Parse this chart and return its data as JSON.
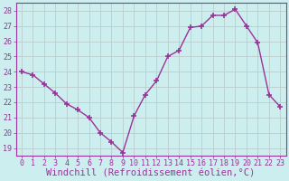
{
  "x": [
    0,
    1,
    2,
    3,
    4,
    5,
    6,
    7,
    8,
    9,
    10,
    11,
    12,
    13,
    14,
    15,
    16,
    17,
    18,
    19,
    20,
    21,
    22,
    23
  ],
  "y": [
    24.0,
    23.8,
    23.2,
    22.6,
    21.9,
    21.5,
    21.0,
    20.0,
    19.4,
    18.7,
    21.1,
    22.5,
    23.4,
    25.0,
    25.4,
    26.9,
    27.0,
    27.7,
    27.7,
    28.1,
    27.0,
    25.9,
    22.5,
    21.7
  ],
  "line_color": "#993399",
  "marker": "+",
  "marker_size": 4,
  "marker_lw": 1.2,
  "line_width": 1.0,
  "bg_color": "#cceeee",
  "grid_color": "#bbcccc",
  "xlabel": "Windchill (Refroidissement éolien,°C)",
  "ylim": [
    18.5,
    28.5
  ],
  "xlim": [
    -0.5,
    23.5
  ],
  "yticks": [
    19,
    20,
    21,
    22,
    23,
    24,
    25,
    26,
    27,
    28
  ],
  "xticks": [
    0,
    1,
    2,
    3,
    4,
    5,
    6,
    7,
    8,
    9,
    10,
    11,
    12,
    13,
    14,
    15,
    16,
    17,
    18,
    19,
    20,
    21,
    22,
    23
  ],
  "tick_color": "#993399",
  "label_color": "#993399",
  "xlabel_fontsize": 7.5,
  "tick_fontsize": 6.0,
  "spine_color": "#993399",
  "spine_lw": 0.8
}
